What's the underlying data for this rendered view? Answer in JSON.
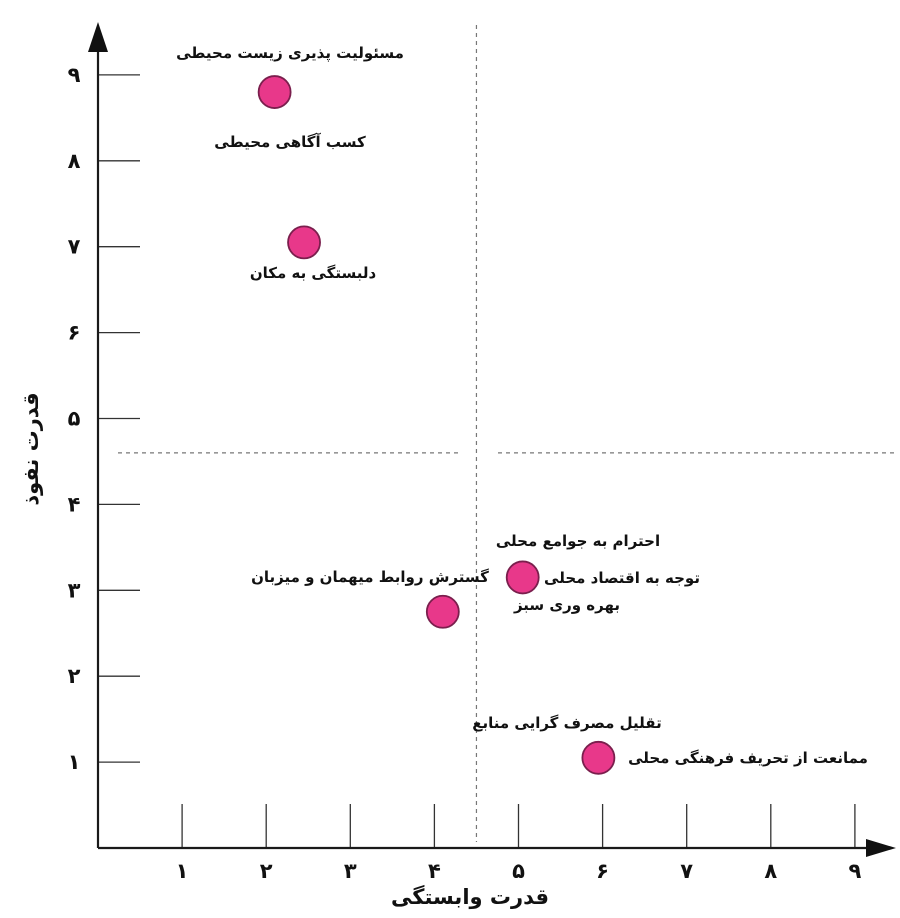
{
  "chart_data": {
    "type": "scatter",
    "xlabel": "قدرت وابستگی",
    "ylabel": "قدرت نفوذ",
    "xlim": [
      0,
      9
    ],
    "ylim": [
      0,
      9
    ],
    "x_ticks": [
      1,
      2,
      3,
      4,
      5,
      6,
      7,
      8,
      9
    ],
    "y_ticks": [
      1,
      2,
      3,
      4,
      5,
      6,
      7,
      8,
      9
    ],
    "x_tick_labels": [
      "۱",
      "۲",
      "۳",
      "۴",
      "۵",
      "۶",
      "۷",
      "۸",
      "۹"
    ],
    "y_tick_labels": [
      "۱",
      "۲",
      "۳",
      "۴",
      "۵",
      "۶",
      "۷",
      "۸",
      "۹"
    ],
    "quadrant_dividers": {
      "x": 4.5,
      "y": 4.6
    },
    "point_color": "#e8388a",
    "points": [
      {
        "x": 2.1,
        "y": 8.8,
        "labels": [
          "مسئولیت پذیری زیست محیطی",
          "کسب آگاهی محیطی"
        ]
      },
      {
        "x": 2.45,
        "y": 7.05,
        "labels": [
          "دلبستگی به مکان"
        ]
      },
      {
        "x": 4.1,
        "y": 2.75,
        "labels": [
          "گسترش روابط میهمان و میزبان"
        ]
      },
      {
        "x": 5.05,
        "y": 3.15,
        "labels": [
          "احترام به جوامع محلی",
          "توجه به اقتصاد محلی",
          "بهره وری سبز"
        ]
      },
      {
        "x": 5.95,
        "y": 1.05,
        "labels": [
          "تقلیل مصرف گرایی منابع",
          "ممانعت از تحریف فرهنگی محلی"
        ]
      }
    ]
  }
}
